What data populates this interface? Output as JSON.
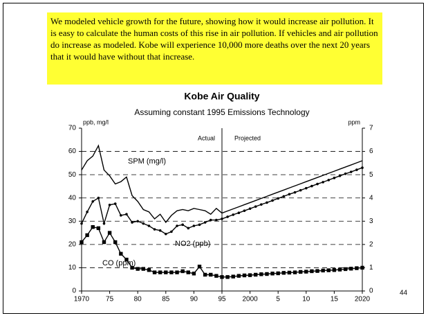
{
  "note": "We modeled vehicle growth for the future, showing how it would increase air pollution.  It is easy to calculate the human costs of this rise in air pollution.  If vehicles and air pollution do increase as modeled. Kobe will experience 10,000 more deaths over the next 20 years that it would have without that increase.",
  "page_number": "44",
  "chart_data": {
    "type": "line",
    "title": "Kobe Air Quality",
    "subtitle": "Assuming constant 1995 Emissions Technology",
    "y_axis_label": "ppb, mg/l",
    "y2_axis_label": "ppm",
    "annotations": [
      "Actual",
      "Projected"
    ],
    "divider_x": 1995,
    "grid": true,
    "x": [
      1970,
      1971,
      1972,
      1973,
      1974,
      1975,
      1976,
      1977,
      1978,
      1979,
      1980,
      1981,
      1982,
      1983,
      1984,
      1985,
      1986,
      1987,
      1988,
      1989,
      1990,
      1991,
      1992,
      1993,
      1994,
      1995,
      1996,
      1997,
      1998,
      1999,
      2000,
      2001,
      2002,
      2003,
      2004,
      2005,
      2006,
      2007,
      2008,
      2009,
      2010,
      2011,
      2012,
      2013,
      2014,
      2015,
      2016,
      2017,
      2018,
      2019,
      2020
    ],
    "xlim": [
      1970,
      2020
    ],
    "xticks": [
      1970,
      {
        "value": 1975,
        "label": "75"
      },
      {
        "value": 1980,
        "label": "80"
      },
      {
        "value": 1985,
        "label": "85"
      },
      {
        "value": 1990,
        "label": "90"
      },
      {
        "value": 1995,
        "label": "95"
      },
      2000,
      {
        "value": 2005,
        "label": "5"
      },
      {
        "value": 2010,
        "label": "10"
      },
      {
        "value": 2015,
        "label": "15"
      },
      2020
    ],
    "ylim": [
      0,
      70
    ],
    "yticks": [
      0,
      10,
      20,
      30,
      40,
      50,
      60,
      70
    ],
    "y2lim": [
      0,
      7
    ],
    "y2ticks": [
      0,
      1,
      2,
      3,
      4,
      5,
      6,
      7
    ],
    "series": [
      {
        "name": "SPM (mg/l)",
        "color": "#000000",
        "marker": "none",
        "values": [
          52,
          56,
          58,
          62.5,
          52,
          49.5,
          46,
          47,
          49,
          41,
          38.5,
          35,
          34,
          31,
          33,
          29.5,
          32.5,
          34.5,
          35,
          34.5,
          35.5,
          35,
          34.5,
          33,
          35.5,
          33.5,
          34.4,
          35.3,
          36.2,
          37.1,
          38,
          38.9,
          39.8,
          40.7,
          41.6,
          42.5,
          43.4,
          44.3,
          45.2,
          46.1,
          47,
          47.9,
          48.8,
          49.7,
          50.6,
          51.5,
          52.4,
          53.3,
          54.2,
          55.1,
          56
        ]
      },
      {
        "name": "NO2 (ppb)",
        "color": "#000000",
        "marker": "dot",
        "values": [
          29,
          34,
          38.5,
          40,
          29,
          37,
          37.5,
          32.5,
          33,
          29.5,
          30,
          29,
          28,
          26.5,
          26,
          24.5,
          25.5,
          28,
          28.5,
          27,
          28,
          28.5,
          29.5,
          30.5,
          30.5,
          31,
          31.9,
          32.8,
          33.6,
          34.5,
          35.4,
          36.3,
          37.2,
          38,
          38.9,
          39.8,
          40.7,
          41.6,
          42.4,
          43.3,
          44.2,
          45.1,
          46,
          46.8,
          47.7,
          48.6,
          49.5,
          50.4,
          51.2,
          52.1,
          53
        ]
      },
      {
        "name": "CO (ppm)",
        "color": "#000000",
        "marker": "square",
        "axis": "y2",
        "values": [
          2.1,
          2.4,
          2.75,
          2.7,
          2.1,
          2.5,
          2.1,
          1.6,
          1.35,
          1.0,
          0.95,
          0.95,
          0.9,
          0.8,
          0.8,
          0.8,
          0.8,
          0.8,
          0.85,
          0.8,
          0.75,
          1.05,
          0.7,
          0.7,
          0.65,
          0.6,
          0.6,
          0.62,
          0.65,
          0.67,
          0.68,
          0.7,
          0.72,
          0.73,
          0.75,
          0.76,
          0.78,
          0.79,
          0.8,
          0.82,
          0.83,
          0.85,
          0.86,
          0.88,
          0.89,
          0.9,
          0.92,
          0.94,
          0.96,
          0.98,
          1.0
        ]
      }
    ]
  }
}
